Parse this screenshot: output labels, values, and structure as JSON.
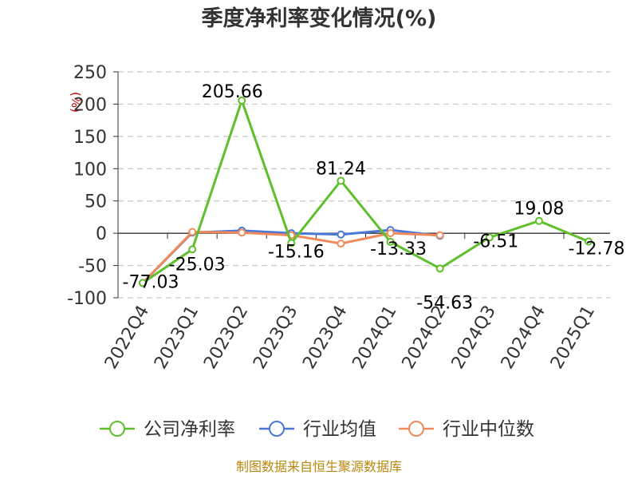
{
  "chart_data": {
    "type": "line",
    "title": "季度净利率变化情况(%)",
    "ylabel": "(%)",
    "categories": [
      "2022Q4",
      "2023Q1",
      "2023Q2",
      "2023Q3",
      "2023Q4",
      "2024Q1",
      "2024Q2",
      "2024Q3",
      "2024Q4",
      "2025Q1"
    ],
    "series": [
      {
        "name": "公司净利率",
        "color": "#5fbf2a",
        "values": [
          -77.03,
          -25.03,
          205.66,
          -15.16,
          81.24,
          -13.33,
          -54.63,
          -6.51,
          19.08,
          -12.78
        ],
        "labels": [
          "-77.03",
          "-25.03",
          "205.66",
          "-15.16",
          "81.24",
          "-13.33",
          "-54.63",
          "-6.51",
          "19.08",
          "-12.78"
        ]
      },
      {
        "name": "行业均值",
        "color": "#4a78d8",
        "values": [
          -77,
          1,
          4,
          0,
          -2,
          5,
          -4,
          null,
          null,
          null
        ]
      },
      {
        "name": "行业中位数",
        "color": "#f08a5a",
        "values": [
          -77,
          2,
          1,
          -3,
          -16,
          0,
          -3,
          null,
          null,
          null
        ]
      }
    ],
    "yticks": [
      "250",
      "200",
      "150",
      "100",
      "50",
      "0",
      "-50",
      "-100"
    ],
    "ylim": [
      -100,
      250
    ],
    "grid": true,
    "legend": "bottom"
  },
  "source": "制图数据来自恒生聚源数据库"
}
